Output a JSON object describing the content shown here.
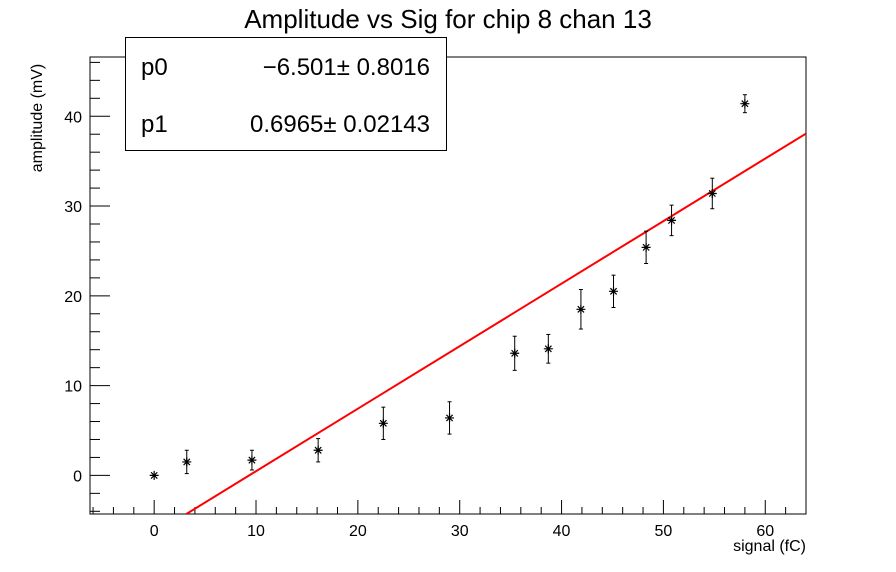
{
  "chart_data": {
    "type": "scatter",
    "title": "Amplitude vs Sig for chip 8 chan 13",
    "xlabel": "signal (fC)",
    "ylabel": "amplitude (mV)",
    "xlim": [
      -6.3,
      64
    ],
    "ylim": [
      -4.3,
      46.6
    ],
    "xticks": [
      0,
      10,
      20,
      30,
      40,
      50,
      60
    ],
    "yticks": [
      0,
      10,
      20,
      30,
      40
    ],
    "grid": false,
    "series": [
      {
        "marker": "star",
        "color": "#000000",
        "x": [
          0,
          3.2,
          9.6,
          16.1,
          22.5,
          29.0,
          35.4,
          38.7,
          41.9,
          45.1,
          48.3,
          50.8,
          54.8,
          58.0
        ],
        "y": [
          0,
          1.5,
          1.7,
          2.8,
          5.8,
          6.4,
          13.6,
          14.1,
          18.5,
          20.5,
          25.4,
          28.4,
          31.4,
          41.4
        ],
        "yerr": [
          0,
          1.3,
          1.1,
          1.3,
          1.8,
          1.8,
          1.9,
          1.6,
          2.2,
          1.8,
          1.8,
          1.7,
          1.7,
          1.0
        ]
      },
      {
        "type": "line",
        "color": "#ff0000",
        "p0": -6.501,
        "p1": 0.6965
      }
    ],
    "stats": [
      {
        "name": "p0",
        "value": "−6.501± 0.8016"
      },
      {
        "name": "p1",
        "value": "0.6965± 0.02143"
      }
    ]
  }
}
